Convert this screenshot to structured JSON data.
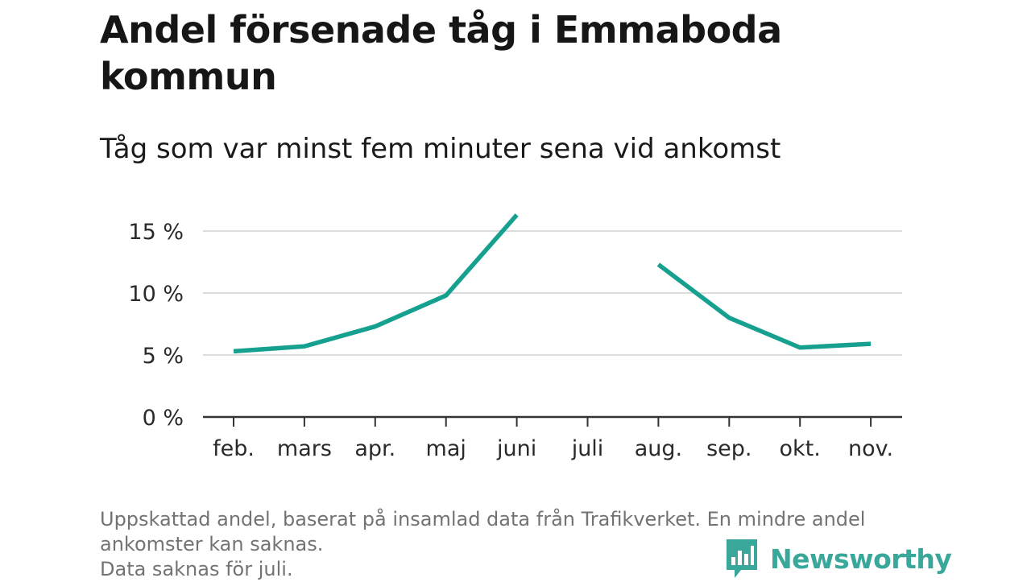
{
  "title": "Andel försenade tåg i Emmaboda kommun",
  "subtitle": "Tåg som var minst fem minuter sena vid ankomst",
  "footnote": [
    "Uppskattad andel, baserat på insamlad data från Trafikverket. En mindre andel",
    "ankomster kan saknas.",
    "Data saknas för juli."
  ],
  "brand": "Newsworthy",
  "colors": {
    "line": "#15a08f",
    "grid": "#dcdcdc",
    "axis": "#333333",
    "brand": "#3aa79b"
  },
  "chart_data": {
    "type": "line",
    "categories": [
      "feb.",
      "mars",
      "apr.",
      "maj",
      "juni",
      "juli",
      "aug.",
      "sep.",
      "okt.",
      "nov."
    ],
    "series": [
      {
        "values": [
          5.3,
          5.7,
          7.3,
          9.8,
          16.3,
          null,
          12.3,
          8.0,
          5.6,
          5.9
        ]
      }
    ],
    "yticks": [
      0,
      5,
      10,
      15
    ],
    "ytick_labels": [
      "0 %",
      "5 %",
      "10 %",
      "15 %"
    ],
    "ylim": [
      0,
      16.3
    ],
    "grid": true
  }
}
